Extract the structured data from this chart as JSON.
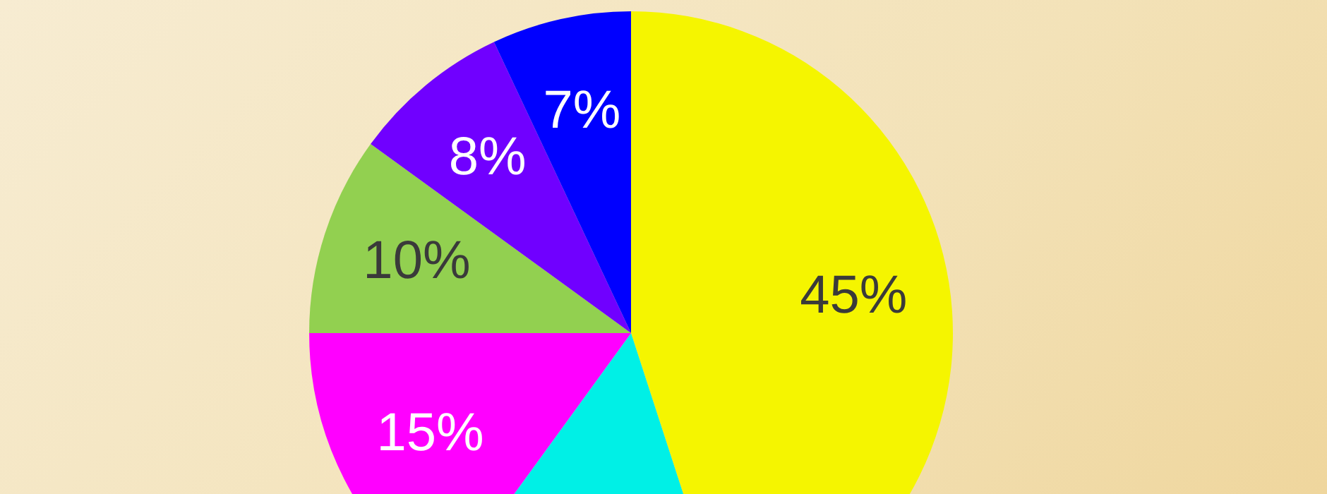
{
  "chart_data": {
    "type": "pie",
    "categories": [
      null,
      null,
      null,
      null,
      null,
      null
    ],
    "values": [
      45,
      15,
      15,
      10,
      8,
      7
    ],
    "colors": [
      "#f5f500",
      "#00f0e6",
      "#ff00ff",
      "#92d050",
      "#7000ff",
      "#0000ff"
    ],
    "value_labels": [
      "45%",
      null,
      "15%",
      "10%",
      "8%",
      "7%"
    ],
    "legend": false
  }
}
